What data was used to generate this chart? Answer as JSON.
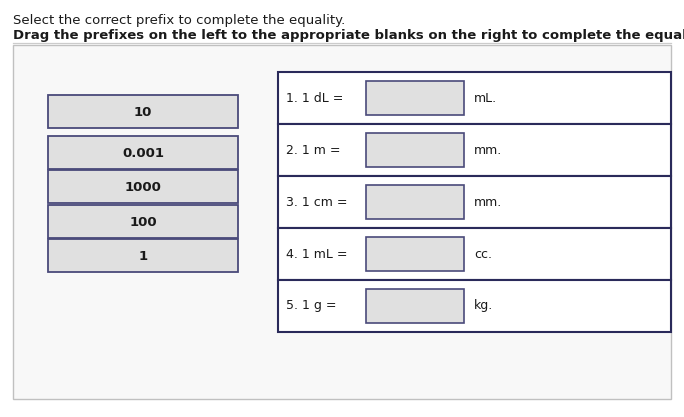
{
  "title_line1": "Select the correct prefix to complete the equality.",
  "title_line2": "Drag the prefixes on the left to the appropriate blanks on the right to complete the equalities.",
  "prefix_labels": [
    "10",
    "0.001",
    "1000",
    "100",
    "1"
  ],
  "equation_labels": [
    "1. 1 dL =",
    "2. 1 m =",
    "3. 1 cm =",
    "4. 1 mL =",
    "5. 1 g ="
  ],
  "equation_units": [
    "mL.",
    "mm.",
    "mm.",
    "cc.",
    "kg."
  ],
  "bg_color": "#ffffff",
  "box_bg": "#e0e0e0",
  "box_border": "#4a4a7a",
  "panel_bg": "#f8f8f8",
  "panel_border": "#c0c0c0",
  "row_border": "#2a2a5a",
  "text_color": "#1a1a1a",
  "title1_fontsize": 9.5,
  "title2_fontsize": 9.5,
  "label_fontsize": 9.0,
  "prefix_fontsize": 9.5,
  "fig_width": 6.84,
  "fig_height": 4.17,
  "dpi": 100
}
